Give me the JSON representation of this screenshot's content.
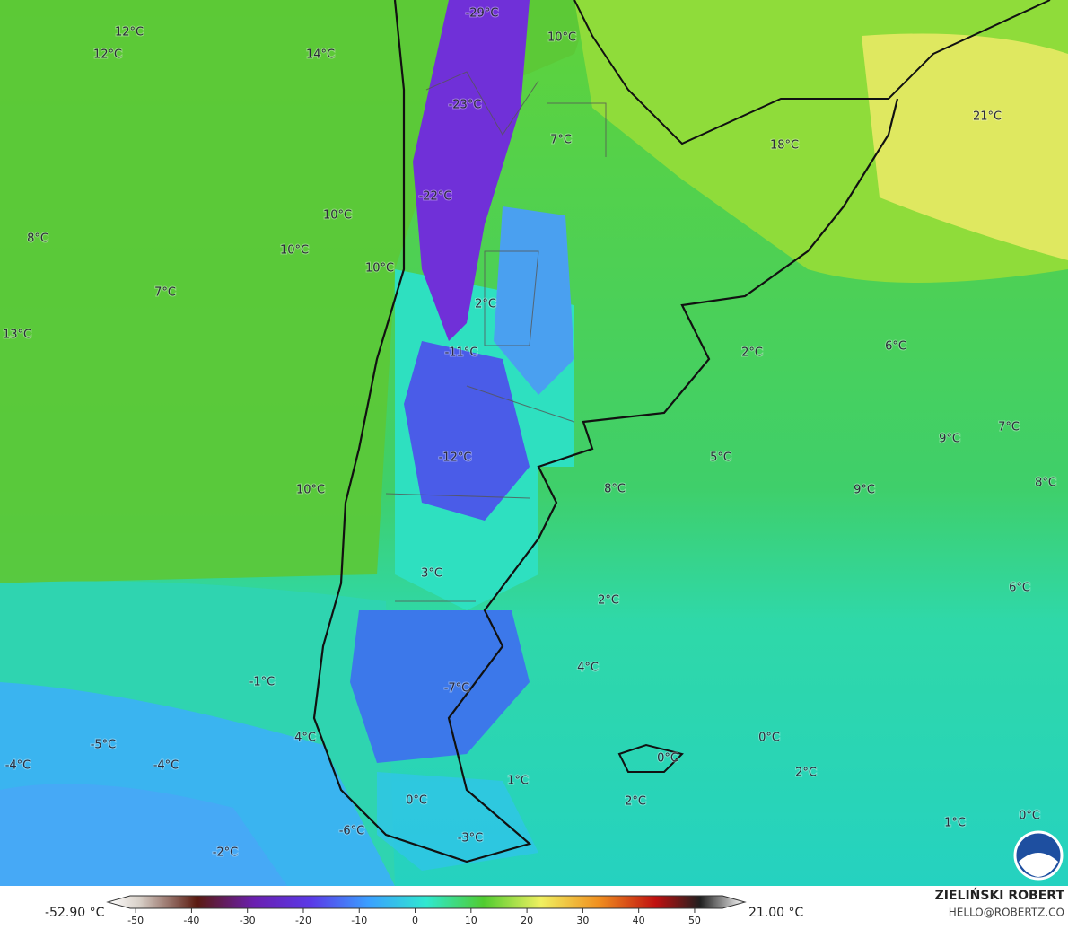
{
  "map": {
    "labels": [
      "-29°C",
      "10°C",
      "12°C",
      "12°C",
      "14°C",
      "-23°C",
      "7°C",
      "18°C",
      "21°C",
      "-22°C",
      "10°C",
      "8°C",
      "10°C",
      "10°C",
      "7°C",
      "2°C",
      "13°C",
      "-11°C",
      "2°C",
      "6°C",
      "7°C",
      "9°C",
      "5°C",
      "-12°C",
      "10°C",
      "8°C",
      "9°C",
      "8°C",
      "3°C",
      "2°C",
      "6°C",
      "4°C",
      "-1°C",
      "-7°C",
      "-5°C",
      "4°C",
      "0°C",
      "0°C",
      "-4°C",
      "-4°C",
      "2°C",
      "1°C",
      "0°C",
      "2°C",
      "1°C",
      "0°C",
      "-6°C",
      "-3°C",
      "-2°C"
    ]
  },
  "colorbar": {
    "min_label": "-52.90 °C",
    "max_label": "21.00 °C",
    "lim": [
      -55,
      59
    ],
    "ticks": [
      -50,
      -40,
      -30,
      -20,
      -10,
      0,
      10,
      20,
      30,
      40,
      50
    ]
  },
  "credits": {
    "author": "ZIELIŃSKI ROBERT",
    "contact": "HELLO@ROBERTZ.CO"
  }
}
